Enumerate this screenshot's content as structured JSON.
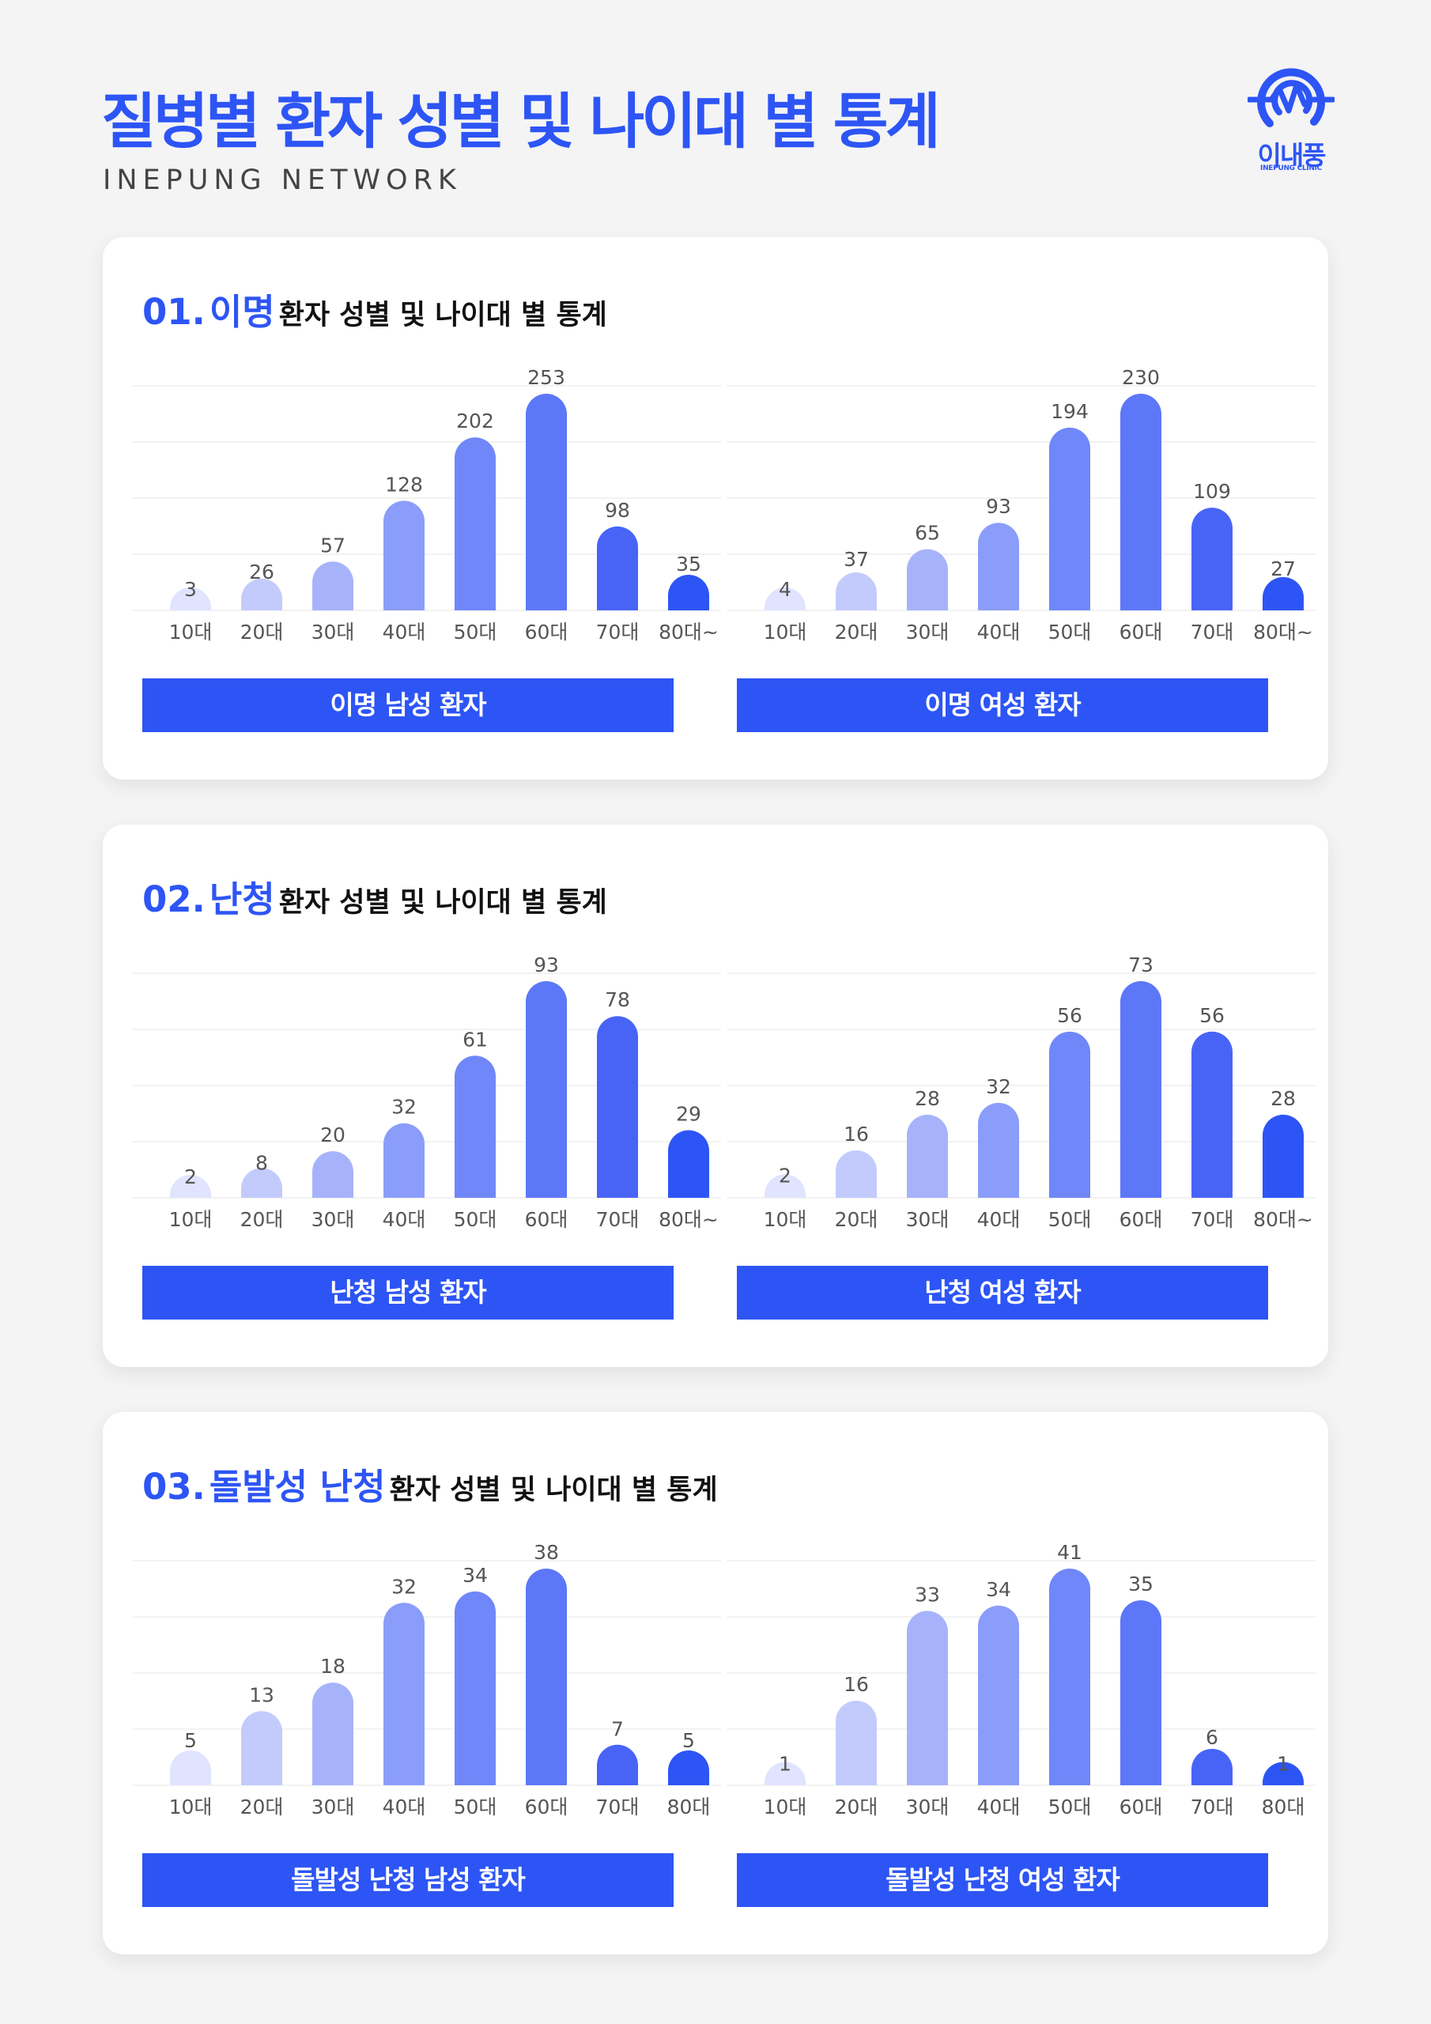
{
  "header": {
    "title": "질병별 환자 성별 및 나이대 별 통계",
    "subtitle": "INEPUNG NETWORK",
    "logo_text": "이내풍",
    "logo_subtext": "INEPUNG CLINIC"
  },
  "colors": {
    "accent": "#2d55f5",
    "bars": [
      "#e0e4fe",
      "#c3cbfd",
      "#a6b3fb",
      "#8b9dfa",
      "#7087f9",
      "#5c77f8",
      "#4864f7",
      "#2d55f5"
    ],
    "grid": "#eeeeee"
  },
  "sections": [
    {
      "number": "01.",
      "disease": "이명",
      "rest": "환자 성별 및 나이대 별 통계"
    },
    {
      "number": "02.",
      "disease": "난청",
      "rest": "환자 성별 및 나이대 별 통계"
    },
    {
      "number": "03.",
      "disease": "돌발성 난청",
      "rest": "환자 성별 및 나이대 별 통계"
    }
  ],
  "chart_data": [
    {
      "type": "bar",
      "label": "이명 남성 환자",
      "categories": [
        "10대",
        "20대",
        "30대",
        "40대",
        "50대",
        "60대",
        "70대",
        "80대~"
      ],
      "values": [
        3,
        26,
        57,
        128,
        202,
        253,
        98,
        35
      ]
    },
    {
      "type": "bar",
      "label": "이명 여성 환자",
      "categories": [
        "10대",
        "20대",
        "30대",
        "40대",
        "50대",
        "60대",
        "70대",
        "80대~"
      ],
      "values": [
        4,
        37,
        65,
        93,
        194,
        230,
        109,
        27
      ]
    },
    {
      "type": "bar",
      "label": "난청 남성 환자",
      "categories": [
        "10대",
        "20대",
        "30대",
        "40대",
        "50대",
        "60대",
        "70대",
        "80대~"
      ],
      "values": [
        2,
        8,
        20,
        32,
        61,
        93,
        78,
        29
      ]
    },
    {
      "type": "bar",
      "label": "난청 여성 환자",
      "categories": [
        "10대",
        "20대",
        "30대",
        "40대",
        "50대",
        "60대",
        "70대",
        "80대~"
      ],
      "values": [
        2,
        16,
        28,
        32,
        56,
        73,
        56,
        28
      ]
    },
    {
      "type": "bar",
      "label": "돌발성 난청 남성 환자",
      "categories": [
        "10대",
        "20대",
        "30대",
        "40대",
        "50대",
        "60대",
        "70대",
        "80대"
      ],
      "values": [
        5,
        13,
        18,
        32,
        34,
        38,
        7,
        5
      ]
    },
    {
      "type": "bar",
      "label": "돌발성 난청 여성 환자",
      "categories": [
        "10대",
        "20대",
        "30대",
        "40대",
        "50대",
        "60대",
        "70대",
        "80대"
      ],
      "values": [
        1,
        16,
        33,
        34,
        41,
        35,
        6,
        1
      ]
    }
  ]
}
